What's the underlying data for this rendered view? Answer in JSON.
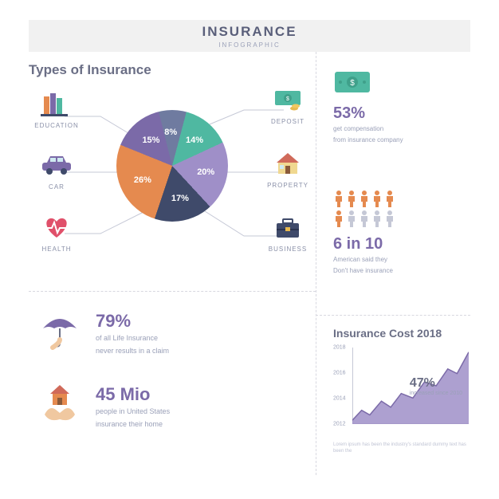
{
  "header": {
    "title": "INSURANCE",
    "subtitle": "INFOGRAPHIC"
  },
  "colors": {
    "purple": "#7b6aa8",
    "teal": "#4fb8a1",
    "teal_dark": "#3fa08a",
    "orange": "#e58a4f",
    "navy": "#3f4a6a",
    "lilac": "#9f8fc8",
    "slate": "#6f7ba0",
    "gray_text": "#9aa0b8",
    "light_bg": "#f1f1f1"
  },
  "types": {
    "title": "Types of Insurance",
    "pie": {
      "type": "pie",
      "slices": [
        {
          "label": "8%",
          "value": 8,
          "color": "#6f7ba0",
          "name": "DEPOSIT"
        },
        {
          "label": "14%",
          "value": 14,
          "color": "#4fb8a1",
          "name": "PROPERTY"
        },
        {
          "label": "20%",
          "value": 20,
          "color": "#9f8fc8",
          "name": "BUSINESS"
        },
        {
          "label": "17%",
          "value": 17,
          "color": "#3f4a6a",
          "name": "HEALTH"
        },
        {
          "label": "26%",
          "value": 26,
          "color": "#e58a4f",
          "name": "CAR"
        },
        {
          "label": "15%",
          "value": 15,
          "color": "#7b6aa8",
          "name": "EDUCATION"
        }
      ]
    },
    "items_left": [
      {
        "key": "education",
        "label": "EDUCATION"
      },
      {
        "key": "car",
        "label": "CAR"
      },
      {
        "key": "health",
        "label": "HEALTH"
      }
    ],
    "items_right": [
      {
        "key": "deposit",
        "label": "DEPOSIT"
      },
      {
        "key": "property",
        "label": "PROPERTY"
      },
      {
        "key": "business",
        "label": "BUSINESS"
      }
    ]
  },
  "right_stats": {
    "stat1": {
      "value": "53%",
      "line1": "get compensation",
      "line2": "from insurance company"
    },
    "stat2": {
      "value": "6 in 10",
      "line1": "American said they",
      "line2": "Don't have insurance",
      "people_colors": [
        "#e58a4f",
        "#e58a4f",
        "#e58a4f",
        "#e58a4f",
        "#e58a4f",
        "#e58a4f",
        "#c5c8d6",
        "#c5c8d6",
        "#c5c8d6",
        "#c5c8d6"
      ]
    }
  },
  "lower_left": {
    "stat1": {
      "value": "79%",
      "line1": "of all Life Insurance",
      "line2": "never results in a claim"
    },
    "stat2": {
      "value": "45 Mio",
      "line1": "people in United States",
      "line2": "insurance their home"
    }
  },
  "cost_chart": {
    "title": "Insurance Cost 2018",
    "type": "area",
    "y_labels": [
      "2018",
      "2016",
      "2014",
      "2012"
    ],
    "fill_color": "#9f8fc8",
    "stroke_color": "#7b6aa8",
    "points_norm": [
      [
        0.0,
        0.05
      ],
      [
        0.08,
        0.18
      ],
      [
        0.15,
        0.12
      ],
      [
        0.25,
        0.3
      ],
      [
        0.33,
        0.22
      ],
      [
        0.42,
        0.4
      ],
      [
        0.52,
        0.34
      ],
      [
        0.62,
        0.55
      ],
      [
        0.72,
        0.5
      ],
      [
        0.82,
        0.72
      ],
      [
        0.9,
        0.66
      ],
      [
        1.0,
        0.94
      ]
    ],
    "callout": {
      "value": "47%",
      "text": "increased since 2010"
    },
    "lorem": "Lorem ipsum has been the industry's standard dummy text has been the"
  }
}
